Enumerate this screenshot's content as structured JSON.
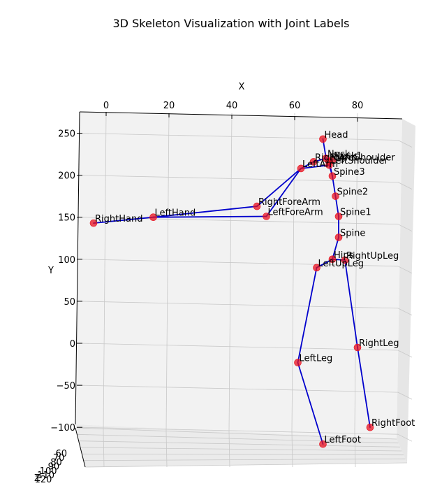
{
  "chart_data": {
    "type": "scatter",
    "title": "3D Skeleton Visualization with Joint Labels",
    "xlabel": "X",
    "ylabel": "Y",
    "zlabel": "Z",
    "xlim": [
      -6,
      90
    ],
    "ylim": [
      -100,
      265
    ],
    "x_ticks": [
      "0",
      "20",
      "40",
      "60",
      "80"
    ],
    "x_tick_values": [
      0,
      20,
      40,
      60,
      80
    ],
    "y_ticks": [
      "250",
      "200",
      "150",
      "100",
      "50",
      "0",
      "−50",
      "−100"
    ],
    "y_tick_values": [
      250,
      200,
      150,
      100,
      50,
      0,
      -50,
      -100
    ],
    "z_ticks": [
      "60",
      "70",
      "80",
      "90",
      "100",
      "110",
      "120"
    ],
    "grid": true,
    "point_color": "#e8101e",
    "bone_color": "#0000cc",
    "joints": [
      {
        "name": "Head",
        "x": 69,
        "y": 243
      },
      {
        "name": "Neck",
        "x": 70,
        "y": 220
      },
      {
        "name": "Neck1",
        "x": 72,
        "y": 218
      },
      {
        "name": "RightArm",
        "x": 66,
        "y": 216
      },
      {
        "name": "RightShoulder",
        "x": 71,
        "y": 216
      },
      {
        "name": "LeftShoulder",
        "x": 71,
        "y": 212
      },
      {
        "name": "LeftArm",
        "x": 62,
        "y": 208
      },
      {
        "name": "Spine3",
        "x": 72,
        "y": 199
      },
      {
        "name": "Spine2",
        "x": 73,
        "y": 175
      },
      {
        "name": "Spine1",
        "x": 74,
        "y": 151
      },
      {
        "name": "Spine",
        "x": 74,
        "y": 126
      },
      {
        "name": "Hips",
        "x": 72,
        "y": 100
      },
      {
        "name": "RightUpLeg",
        "x": 76,
        "y": 99
      },
      {
        "name": "LeftUpLeg",
        "x": 67,
        "y": 90
      },
      {
        "name": "RightLeg",
        "x": 80,
        "y": -5
      },
      {
        "name": "LeftLeg",
        "x": 61,
        "y": -23
      },
      {
        "name": "RightFoot",
        "x": 84,
        "y": -100
      },
      {
        "name": "LeftFoot",
        "x": 69,
        "y": -120
      },
      {
        "name": "RightForeArm",
        "x": 48,
        "y": 163
      },
      {
        "name": "LeftForeArm",
        "x": 51,
        "y": 151
      },
      {
        "name": "LeftHand",
        "x": 15,
        "y": 150
      },
      {
        "name": "RightHand",
        "x": -4,
        "y": 143
      }
    ],
    "bones": [
      [
        "Head",
        "Neck"
      ],
      [
        "Neck",
        "Neck1"
      ],
      [
        "Neck1",
        "RightShoulder"
      ],
      [
        "Neck",
        "RightArm"
      ],
      [
        "RightArm",
        "LeftArm"
      ],
      [
        "LeftShoulder",
        "LeftArm"
      ],
      [
        "RightShoulder",
        "Spine3"
      ],
      [
        "LeftShoulder",
        "Spine3"
      ],
      [
        "Spine3",
        "Spine2"
      ],
      [
        "Spine2",
        "Spine1"
      ],
      [
        "Spine1",
        "Spine"
      ],
      [
        "Spine",
        "Hips"
      ],
      [
        "Hips",
        "RightUpLeg"
      ],
      [
        "Hips",
        "LeftUpLeg"
      ],
      [
        "RightUpLeg",
        "RightLeg"
      ],
      [
        "RightLeg",
        "RightFoot"
      ],
      [
        "LeftUpLeg",
        "LeftLeg"
      ],
      [
        "LeftLeg",
        "LeftFoot"
      ],
      [
        "LeftArm",
        "RightForeArm"
      ],
      [
        "LeftArm",
        "LeftForeArm"
      ],
      [
        "RightForeArm",
        "LeftHand"
      ],
      [
        "LeftForeArm",
        "LeftHand"
      ],
      [
        "LeftHand",
        "RightHand"
      ]
    ]
  }
}
